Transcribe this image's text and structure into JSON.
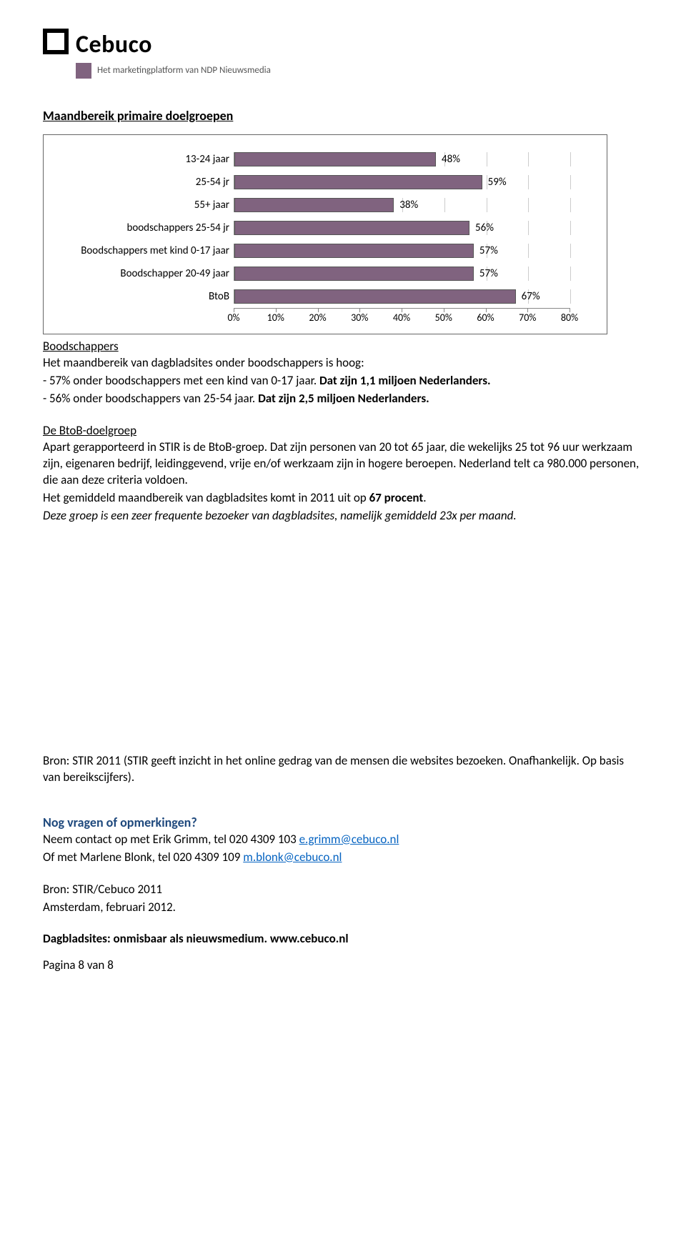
{
  "logo": {
    "name": "Cebuco",
    "tagline": "Het marketingplatform van NDP Nieuwsmedia"
  },
  "title": "Maandbereik primaire doelgroepen",
  "chart": {
    "type": "bar-horizontal",
    "xmax": 80,
    "tick_step": 10,
    "bar_color": "#80637f",
    "border_color": "#666666",
    "grid_color": "#cccccc",
    "label_fontsize": 15,
    "categories": [
      {
        "label": "13-24 jaar",
        "value": 48
      },
      {
        "label": "25-54 jr",
        "value": 59
      },
      {
        "label": "55+ jaar",
        "value": 38
      },
      {
        "label": "boodschappers 25-54 jr",
        "value": 56
      },
      {
        "label": "Boodschappers met kind 0-17 jaar",
        "value": 57
      },
      {
        "label": "Boodschapper 20-49 jaar",
        "value": 57
      },
      {
        "label": "BtoB",
        "value": 67
      }
    ],
    "ticks": [
      "0%",
      "10%",
      "20%",
      "30%",
      "40%",
      "50%",
      "60%",
      "70%",
      "80%"
    ]
  },
  "body": {
    "boodschappers_h": "Boodschappers",
    "p1": "Het maandbereik van dagbladsites onder boodschappers is hoog:",
    "p2a": "- 57% onder boodschappers met een kind van 0-17 jaar. ",
    "p2b": "Dat zijn 1,1 miljoen Nederlanders.",
    "p3a": "- 56% onder boodschappers van 25-54 jaar. ",
    "p3b": "Dat zijn 2,5 miljoen Nederlanders.",
    "btob_h": "De BtoB-doelgroep",
    "btob1": "Apart gerapporteerd in STIR is de BtoB-groep. Dat zijn personen van 20 tot 65 jaar, die wekelijks 25 tot 96 uur werkzaam zijn, eigenaren bedrijf, leidinggevend, vrije en/of werkzaam zijn in hogere beroepen. Nederland telt ca 980.000 personen, die aan deze criteria voldoen.",
    "btob2a": "Het gemiddeld maandbereik van dagbladsites komt in 2011 uit op ",
    "btob2b": "67 procent",
    "btob2c": ".",
    "btob3": "Deze groep is  een zeer frequente bezoeker van dagbladsites, namelijk gemiddeld 23x per maand.",
    "bron1": "Bron: STIR 2011 (STIR geeft inzicht in het online gedrag van de mensen die websites bezoeken. Onafhankelijk. Op basis van bereikscijfers).",
    "contact_h": "Nog vragen of opmerkingen?",
    "contact1a": "Neem contact op met Erik Grimm, tel 020 4309 103 ",
    "contact1b": "e.grimm@cebuco.nl",
    "contact2a": "Of met Marlene Blonk, tel 020 4309 109 ",
    "contact2b": "m.blonk@cebuco.nl",
    "bron2a": "Bron: STIR/Cebuco 2011",
    "bron2b": "Amsterdam, februari 2012.",
    "footer_h": "Dagbladsites: onmisbaar als nieuwsmedium. www.cebuco.nl",
    "pagina": "Pagina 8 van 8"
  }
}
